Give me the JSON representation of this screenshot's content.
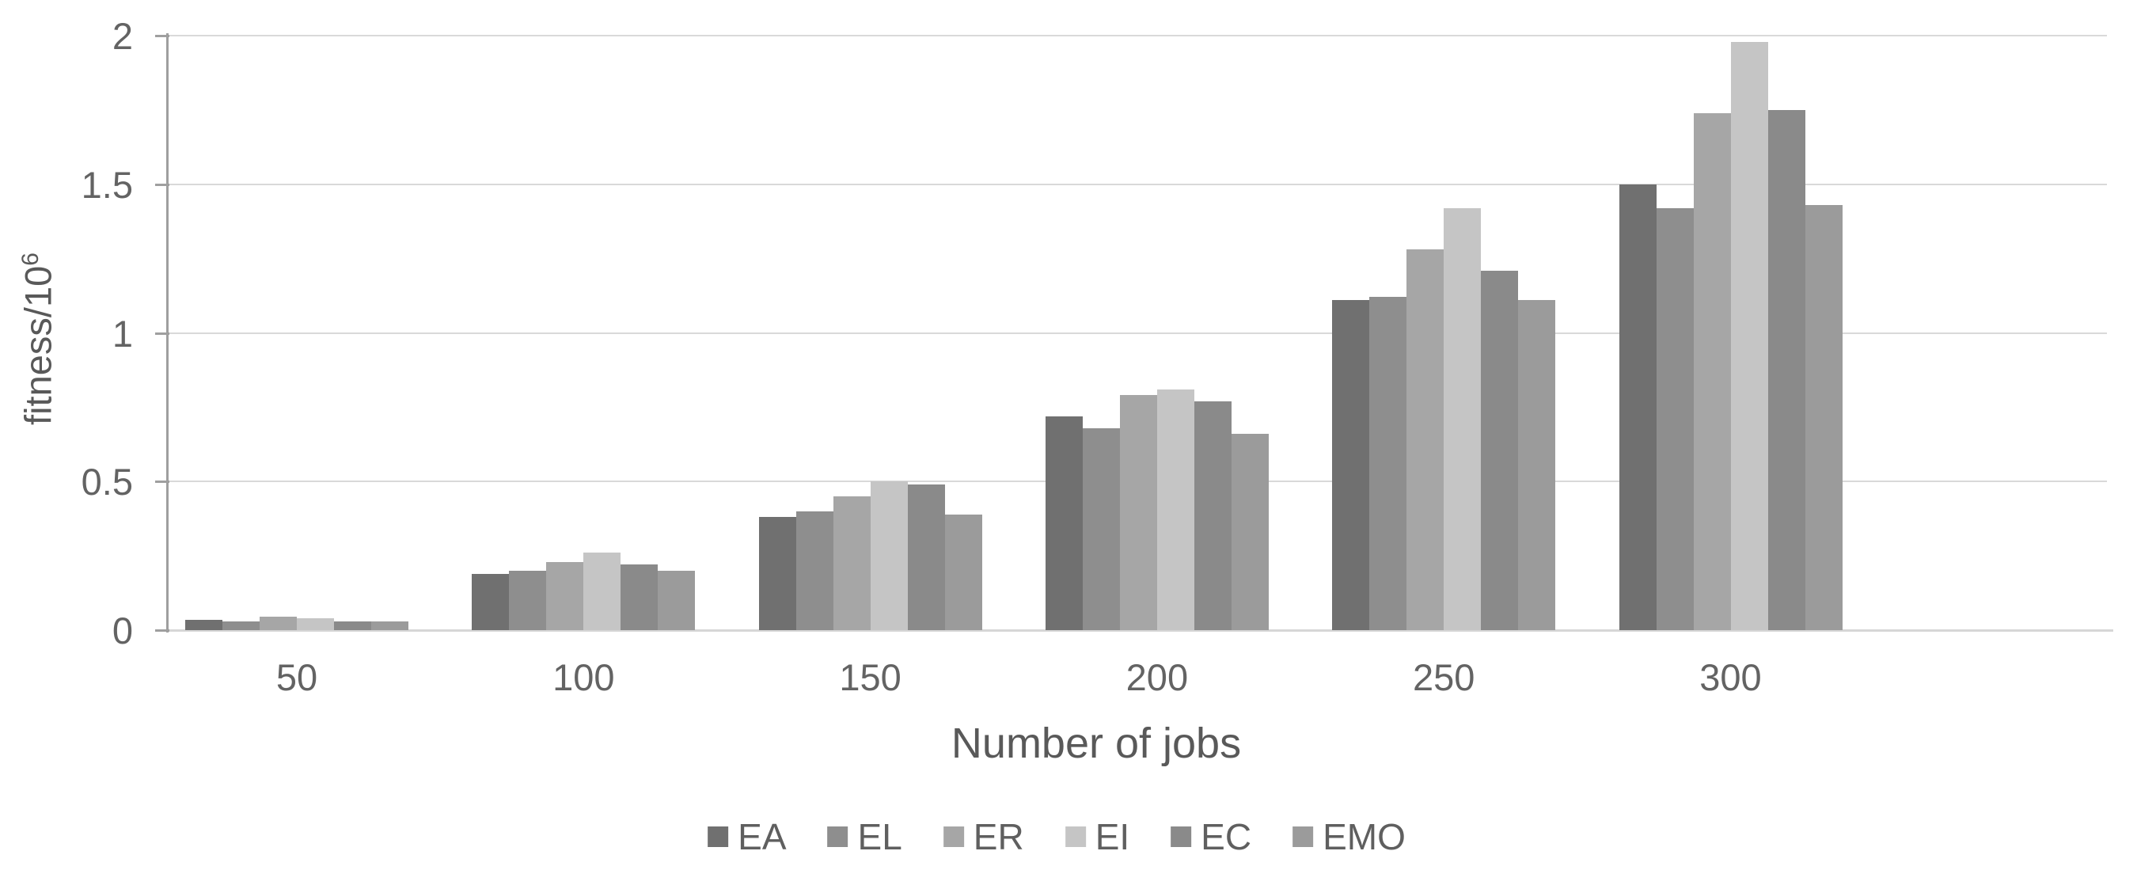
{
  "chart_data": {
    "type": "bar",
    "title": "",
    "xlabel": "Number of jobs",
    "ylabel_base": "fitness/10",
    "ylabel_sup": "6",
    "categories": [
      "50",
      "100",
      "150",
      "200",
      "250",
      "300"
    ],
    "y_ticks": [
      {
        "value": 0,
        "label": "0"
      },
      {
        "value": 0.5,
        "label": "0.5"
      },
      {
        "value": 1,
        "label": "1"
      },
      {
        "value": 1.5,
        "label": "1.5"
      },
      {
        "value": 2,
        "label": "2"
      }
    ],
    "ylim": [
      0,
      2
    ],
    "grid": true,
    "legend_position": "bottom",
    "series": [
      {
        "name": "EA",
        "color": "#707070",
        "values": [
          0.035,
          0.19,
          0.38,
          0.72,
          1.11,
          1.5
        ]
      },
      {
        "name": "EL",
        "color": "#8e8e8e",
        "values": [
          0.03,
          0.2,
          0.4,
          0.68,
          1.12,
          1.42
        ]
      },
      {
        "name": "ER",
        "color": "#a6a6a6",
        "values": [
          0.045,
          0.23,
          0.45,
          0.79,
          1.28,
          1.74
        ]
      },
      {
        "name": "EI",
        "color": "#c5c5c5",
        "values": [
          0.04,
          0.26,
          0.5,
          0.81,
          1.42,
          1.98
        ]
      },
      {
        "name": "EC",
        "color": "#8a8a8a",
        "values": [
          0.03,
          0.22,
          0.49,
          0.77,
          1.21,
          1.75
        ]
      },
      {
        "name": "EMO",
        "color": "#9b9b9b",
        "values": [
          0.03,
          0.2,
          0.39,
          0.66,
          1.11,
          1.43
        ]
      }
    ]
  }
}
